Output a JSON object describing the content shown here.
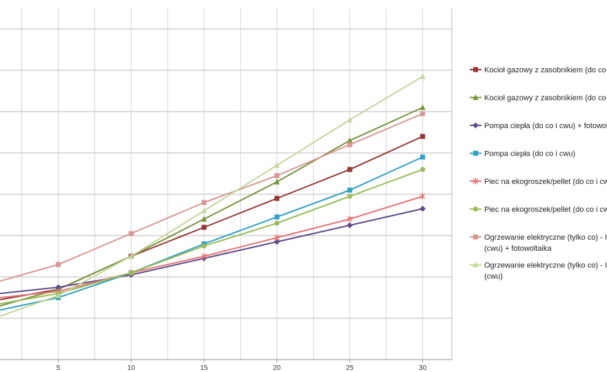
{
  "chart_data": {
    "type": "line",
    "title": "",
    "xlabel": "",
    "ylabel": "",
    "grid": true,
    "legend_position": "right",
    "xlim": [
      1,
      32
    ],
    "ylim": [
      0,
      8.5
    ],
    "x_ticks": [
      5,
      10,
      15,
      20,
      25,
      30
    ],
    "x_tick_labels": [
      "5",
      "10",
      "15",
      "20",
      "25",
      "30"
    ],
    "y_gridlines": [
      1,
      2,
      3,
      4,
      5,
      6,
      7,
      8
    ],
    "x_minor_gridlines": [
      2.5,
      5,
      7.5,
      10,
      12.5,
      15,
      17.5,
      20,
      22.5,
      25,
      27.5,
      30
    ],
    "series": [
      {
        "name": "Kocioł gazowy z zasobnikiem (do co i",
        "legend_lines": [
          "Kocioł gazowy z zasobnikiem (do co i"
        ],
        "color": "#953735",
        "marker": "square",
        "x": [
          1,
          5,
          10,
          15,
          20,
          25,
          30
        ],
        "y": [
          1.45,
          1.7,
          2.5,
          3.2,
          3.9,
          4.6,
          5.4
        ]
      },
      {
        "name": "Kocioł gazowy z zasobnikiem (do co i",
        "legend_lines": [
          "Kocioł gazowy z zasobnikiem (do co i"
        ],
        "color": "#77933c",
        "marker": "triangle",
        "x": [
          1,
          5,
          10,
          15,
          20,
          25,
          30
        ],
        "y": [
          1.3,
          1.7,
          2.5,
          3.4,
          4.3,
          5.3,
          6.1
        ]
      },
      {
        "name": "Pompa ciepła (do co i cwu) + fotowol",
        "legend_lines": [
          "Pompa ciepła (do co i cwu) + fotowol"
        ],
        "color": "#5f4b8b",
        "marker": "diamond",
        "x": [
          1,
          5,
          10,
          15,
          20,
          25,
          30
        ],
        "y": [
          1.6,
          1.75,
          2.05,
          2.45,
          2.85,
          3.25,
          3.65
        ]
      },
      {
        "name": "Pompa ciepła (do co i cwu)",
        "legend_lines": [
          "Pompa ciepła (do co i cwu)"
        ],
        "color": "#31a1c4",
        "marker": "square",
        "x": [
          1,
          5,
          10,
          15,
          20,
          25,
          30
        ],
        "y": [
          1.2,
          1.5,
          2.1,
          2.8,
          3.45,
          4.1,
          4.9
        ]
      },
      {
        "name": "Piec na ekogroszek/pellet (do co i cwu)",
        "legend_lines": [
          "Piec na ekogroszek/pellet (do co i cwu"
        ],
        "color": "#e67373",
        "marker": "star",
        "x": [
          1,
          5,
          10,
          15,
          20,
          25,
          30
        ],
        "y": [
          1.5,
          1.65,
          2.1,
          2.5,
          2.95,
          3.4,
          3.95
        ]
      },
      {
        "name": "Piec na ekogroszek/pellet (do co i cw",
        "legend_lines": [
          "Piec na ekogroszek/pellet (do co i cw"
        ],
        "color": "#9bbb59",
        "marker": "circle",
        "x": [
          1,
          5,
          10,
          15,
          20,
          25,
          30
        ],
        "y": [
          1.35,
          1.6,
          2.1,
          2.75,
          3.3,
          3.95,
          4.6
        ]
      },
      {
        "name": "Ogrzewanie elektryczne (tylko co) - II (cwu) + fotowoltaika",
        "legend_lines": [
          "Ogrzewanie elektryczne (tylko co) - II",
          "(cwu) + fotowoltaika"
        ],
        "color": "#d99694",
        "marker": "square",
        "x": [
          1,
          5,
          10,
          15,
          20,
          25,
          30
        ],
        "y": [
          1.9,
          2.3,
          3.05,
          3.8,
          4.45,
          5.2,
          5.95
        ]
      },
      {
        "name": "Ogrzewanie elektryczne (tylko co) - II (cwu)",
        "legend_lines": [
          "Ogrzewanie elektryczne (tylko co) - II",
          "(cwu)"
        ],
        "color": "#c3d69b",
        "marker": "triangle",
        "x": [
          1,
          5,
          10,
          15,
          20,
          25,
          30
        ],
        "y": [
          1.05,
          1.55,
          2.5,
          3.6,
          4.7,
          5.8,
          6.85
        ]
      }
    ]
  }
}
